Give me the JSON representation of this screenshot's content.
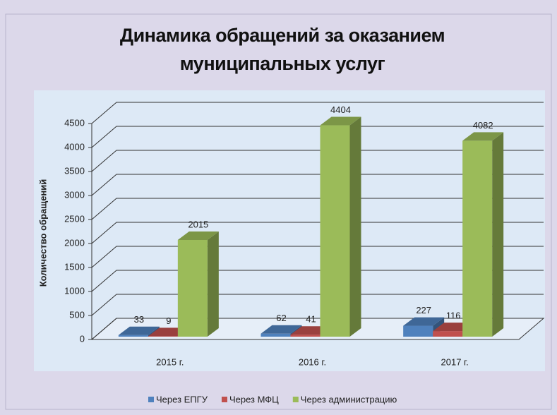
{
  "chart_data": {
    "type": "bar3d",
    "title": "Динамика обращений за оказанием муниципальных услуг",
    "y_label": "Количество обращений",
    "categories": [
      "2015 г.",
      "2016 г.",
      "2017 г."
    ],
    "series": [
      {
        "name": "Через ЕПГУ",
        "color": "#4f81bd",
        "values": [
          33,
          62,
          227
        ]
      },
      {
        "name": "Через МФЦ",
        "color": "#c0504d",
        "values": [
          9,
          41,
          116
        ]
      },
      {
        "name": "Через администрацию",
        "color": "#9bbb59",
        "values": [
          2015,
          4404,
          4082
        ]
      }
    ],
    "ylim": [
      0,
      4500
    ],
    "yticks": [
      0,
      500,
      1000,
      1500,
      2000,
      2500,
      3000,
      3500,
      4000,
      4500
    ],
    "grid": true,
    "legend": "bottom"
  }
}
